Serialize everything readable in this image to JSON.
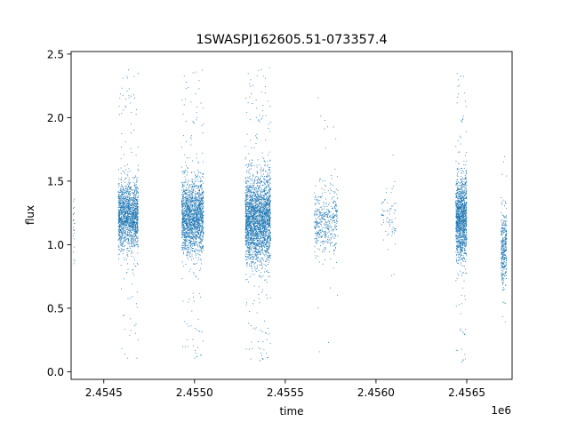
{
  "chart_data": {
    "type": "scatter",
    "title": "1SWASPJ162605.51-073357.4",
    "xlabel": "time",
    "ylabel": "flux",
    "x_offset_label": "1e6",
    "xlim": [
      2454320,
      2456750
    ],
    "ylim": [
      -0.06,
      2.52
    ],
    "x_ticks": [
      2454500,
      2455000,
      2455500,
      2456000,
      2456500
    ],
    "x_tick_labels": [
      "2.4545",
      "2.4550",
      "2.4555",
      "2.4560",
      "2.4565"
    ],
    "y_ticks": [
      0.0,
      0.5,
      1.0,
      1.5,
      2.0,
      2.5
    ],
    "y_tick_labels": [
      "0.0",
      "0.5",
      "1.0",
      "1.5",
      "2.0",
      "2.5"
    ],
    "marker_color": "#1f77b4",
    "grid": false,
    "legend": "none",
    "series": [
      {
        "clusters": [
          {
            "x_start": 2454330,
            "x_end": 2454340,
            "n": 25,
            "y_center": 1.15,
            "y_spread": 0.15,
            "y_min": 0.85,
            "y_max": 1.52
          },
          {
            "x_start": 2454580,
            "x_end": 2454690,
            "n": 1600,
            "y_center": 1.22,
            "y_spread": 0.13,
            "y_min": 0.1,
            "y_max": 2.38
          },
          {
            "x_start": 2454930,
            "x_end": 2455050,
            "n": 1800,
            "y_center": 1.22,
            "y_spread": 0.14,
            "y_min": 0.08,
            "y_max": 2.38
          },
          {
            "x_start": 2455280,
            "x_end": 2455420,
            "n": 2600,
            "y_center": 1.2,
            "y_spread": 0.17,
            "y_min": 0.06,
            "y_max": 2.4
          },
          {
            "x_start": 2455660,
            "x_end": 2455790,
            "n": 450,
            "y_center": 1.18,
            "y_spread": 0.13,
            "y_min": 0.12,
            "y_max": 2.28
          },
          {
            "x_start": 2456030,
            "x_end": 2456110,
            "n": 70,
            "y_center": 1.22,
            "y_spread": 0.12,
            "y_min": 0.65,
            "y_max": 2.05
          },
          {
            "x_start": 2456440,
            "x_end": 2456500,
            "n": 1300,
            "y_center": 1.2,
            "y_spread": 0.16,
            "y_min": 0.05,
            "y_max": 2.4
          },
          {
            "x_start": 2456690,
            "x_end": 2456720,
            "n": 350,
            "y_center": 0.98,
            "y_spread": 0.14,
            "y_min": 0.32,
            "y_max": 1.82
          }
        ]
      }
    ]
  }
}
